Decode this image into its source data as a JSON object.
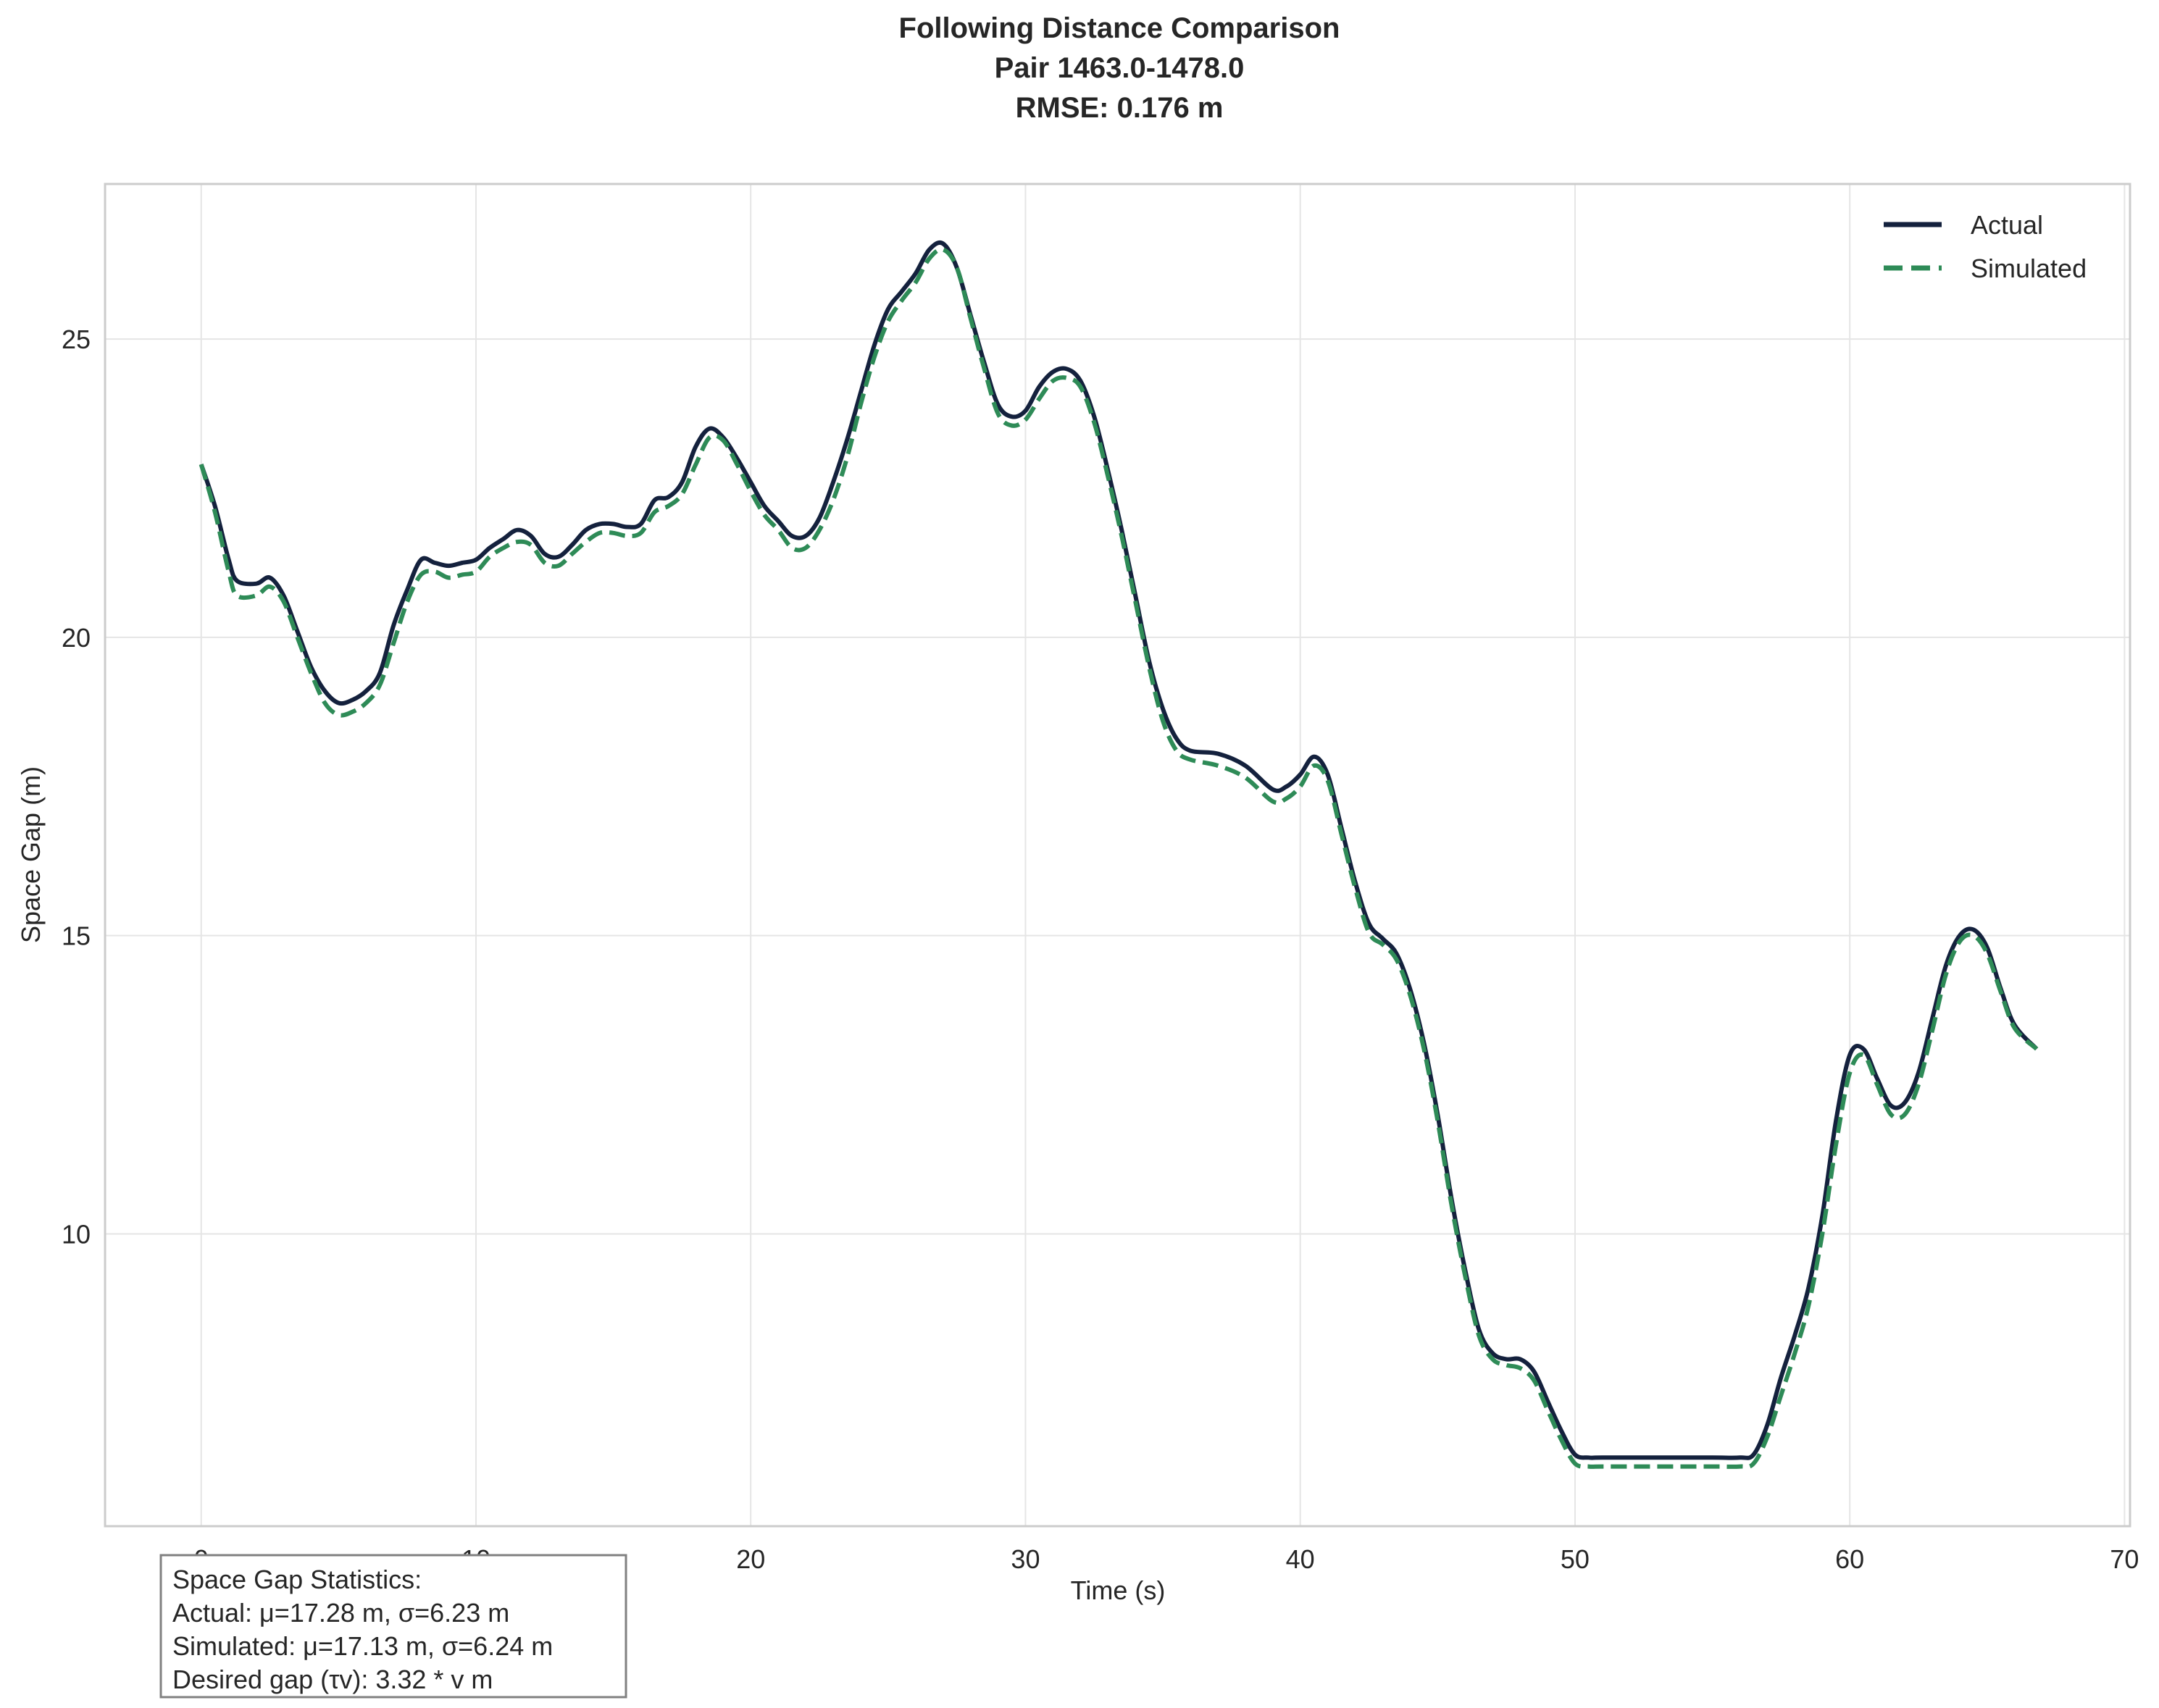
{
  "chart_data": {
    "type": "line",
    "title_lines": [
      "Following Distance Comparison",
      "Pair 1463.0-1478.0",
      "RMSE: 0.176 m"
    ],
    "xlabel": "Time (s)",
    "ylabel": "Space Gap (m)",
    "xlim": [
      -3.5,
      70.2
    ],
    "ylim": [
      5.1,
      27.6
    ],
    "xticks": [
      0,
      10,
      20,
      30,
      40,
      50,
      60,
      70
    ],
    "yticks": [
      10,
      15,
      20,
      25
    ],
    "grid": true,
    "legend_position": "top-right",
    "series": [
      {
        "name": "Actual",
        "color": "#14213d",
        "style": "solid",
        "points": [
          [
            0,
            22.9
          ],
          [
            0.5,
            22.2
          ],
          [
            1,
            21.3
          ],
          [
            1.3,
            20.95
          ],
          [
            2,
            20.9
          ],
          [
            2.5,
            21.0
          ],
          [
            3,
            20.7
          ],
          [
            3.5,
            20.1
          ],
          [
            4,
            19.5
          ],
          [
            4.5,
            19.1
          ],
          [
            5,
            18.9
          ],
          [
            5.5,
            18.95
          ],
          [
            6,
            19.1
          ],
          [
            6.5,
            19.4
          ],
          [
            7,
            20.2
          ],
          [
            7.5,
            20.8
          ],
          [
            8,
            21.3
          ],
          [
            8.5,
            21.25
          ],
          [
            9,
            21.2
          ],
          [
            9.5,
            21.25
          ],
          [
            10,
            21.3
          ],
          [
            10.5,
            21.5
          ],
          [
            11,
            21.65
          ],
          [
            11.5,
            21.8
          ],
          [
            12,
            21.7
          ],
          [
            12.5,
            21.4
          ],
          [
            13,
            21.35
          ],
          [
            13.5,
            21.55
          ],
          [
            14,
            21.8
          ],
          [
            14.5,
            21.9
          ],
          [
            15,
            21.9
          ],
          [
            15.5,
            21.85
          ],
          [
            16,
            21.9
          ],
          [
            16.5,
            22.3
          ],
          [
            17,
            22.35
          ],
          [
            17.5,
            22.6
          ],
          [
            18,
            23.2
          ],
          [
            18.5,
            23.5
          ],
          [
            19,
            23.35
          ],
          [
            19.5,
            23.0
          ],
          [
            20,
            22.6
          ],
          [
            20.5,
            22.2
          ],
          [
            21,
            21.95
          ],
          [
            21.5,
            21.7
          ],
          [
            22,
            21.7
          ],
          [
            22.5,
            22.0
          ],
          [
            23,
            22.6
          ],
          [
            23.5,
            23.3
          ],
          [
            24,
            24.1
          ],
          [
            24.5,
            24.9
          ],
          [
            25,
            25.5
          ],
          [
            25.5,
            25.8
          ],
          [
            26,
            26.1
          ],
          [
            26.5,
            26.5
          ],
          [
            27,
            26.6
          ],
          [
            27.5,
            26.2
          ],
          [
            28,
            25.4
          ],
          [
            28.5,
            24.6
          ],
          [
            29,
            23.9
          ],
          [
            29.5,
            23.7
          ],
          [
            30,
            23.8
          ],
          [
            30.5,
            24.2
          ],
          [
            31,
            24.45
          ],
          [
            31.5,
            24.5
          ],
          [
            32,
            24.3
          ],
          [
            32.5,
            23.7
          ],
          [
            33,
            22.8
          ],
          [
            33.5,
            21.8
          ],
          [
            34,
            20.7
          ],
          [
            34.5,
            19.6
          ],
          [
            35,
            18.8
          ],
          [
            35.5,
            18.3
          ],
          [
            36,
            18.1
          ],
          [
            37,
            18.05
          ],
          [
            38,
            17.85
          ],
          [
            39,
            17.45
          ],
          [
            39.5,
            17.5
          ],
          [
            40,
            17.7
          ],
          [
            40.5,
            18.0
          ],
          [
            41,
            17.7
          ],
          [
            41.5,
            16.8
          ],
          [
            42,
            15.9
          ],
          [
            42.5,
            15.2
          ],
          [
            43,
            14.95
          ],
          [
            43.5,
            14.7
          ],
          [
            44,
            14.1
          ],
          [
            44.5,
            13.2
          ],
          [
            45,
            12.0
          ],
          [
            45.5,
            10.6
          ],
          [
            46,
            9.4
          ],
          [
            46.5,
            8.4
          ],
          [
            47,
            8.0
          ],
          [
            47.5,
            7.9
          ],
          [
            48,
            7.9
          ],
          [
            48.5,
            7.7
          ],
          [
            49,
            7.2
          ],
          [
            49.5,
            6.7
          ],
          [
            50,
            6.3
          ],
          [
            50.5,
            6.25
          ],
          [
            51,
            6.25
          ],
          [
            53,
            6.25
          ],
          [
            55,
            6.25
          ],
          [
            56,
            6.25
          ],
          [
            56.5,
            6.3
          ],
          [
            57,
            6.8
          ],
          [
            57.5,
            7.6
          ],
          [
            58,
            8.3
          ],
          [
            58.5,
            9.1
          ],
          [
            59,
            10.3
          ],
          [
            59.5,
            11.9
          ],
          [
            60,
            13.0
          ],
          [
            60.5,
            13.1
          ],
          [
            61,
            12.6
          ],
          [
            61.5,
            12.15
          ],
          [
            62,
            12.2
          ],
          [
            62.5,
            12.7
          ],
          [
            63,
            13.6
          ],
          [
            63.5,
            14.5
          ],
          [
            64,
            15.0
          ],
          [
            64.5,
            15.1
          ],
          [
            65,
            14.8
          ],
          [
            65.5,
            14.1
          ],
          [
            66,
            13.5
          ],
          [
            66.8,
            13.1
          ]
        ]
      },
      {
        "name": "Simulated",
        "color": "#2e8b57",
        "style": "dashed",
        "points": [
          [
            0,
            22.9
          ],
          [
            0.5,
            22.1
          ],
          [
            1,
            21.1
          ],
          [
            1.3,
            20.7
          ],
          [
            2,
            20.7
          ],
          [
            2.5,
            20.85
          ],
          [
            3,
            20.6
          ],
          [
            3.5,
            20.0
          ],
          [
            4,
            19.4
          ],
          [
            4.5,
            18.9
          ],
          [
            5,
            18.7
          ],
          [
            5.5,
            18.75
          ],
          [
            6,
            18.9
          ],
          [
            6.5,
            19.2
          ],
          [
            7,
            19.9
          ],
          [
            7.5,
            20.6
          ],
          [
            8,
            21.05
          ],
          [
            8.5,
            21.1
          ],
          [
            9,
            21.0
          ],
          [
            9.5,
            21.05
          ],
          [
            10,
            21.1
          ],
          [
            10.5,
            21.35
          ],
          [
            11,
            21.5
          ],
          [
            11.5,
            21.6
          ],
          [
            12,
            21.55
          ],
          [
            12.5,
            21.25
          ],
          [
            13,
            21.2
          ],
          [
            13.5,
            21.4
          ],
          [
            14,
            21.6
          ],
          [
            14.5,
            21.75
          ],
          [
            15,
            21.75
          ],
          [
            15.5,
            21.7
          ],
          [
            16,
            21.75
          ],
          [
            16.5,
            22.1
          ],
          [
            17,
            22.2
          ],
          [
            17.5,
            22.4
          ],
          [
            18,
            22.9
          ],
          [
            18.5,
            23.35
          ],
          [
            19,
            23.3
          ],
          [
            19.5,
            22.9
          ],
          [
            20,
            22.45
          ],
          [
            20.5,
            22.05
          ],
          [
            21,
            21.8
          ],
          [
            21.5,
            21.5
          ],
          [
            22,
            21.5
          ],
          [
            22.5,
            21.8
          ],
          [
            23,
            22.3
          ],
          [
            23.5,
            23.0
          ],
          [
            24,
            23.9
          ],
          [
            24.5,
            24.7
          ],
          [
            25,
            25.3
          ],
          [
            25.5,
            25.65
          ],
          [
            26,
            25.95
          ],
          [
            26.5,
            26.35
          ],
          [
            27,
            26.5
          ],
          [
            27.5,
            26.2
          ],
          [
            28,
            25.35
          ],
          [
            28.5,
            24.5
          ],
          [
            29,
            23.75
          ],
          [
            29.5,
            23.55
          ],
          [
            30,
            23.65
          ],
          [
            30.5,
            24.0
          ],
          [
            31,
            24.3
          ],
          [
            31.5,
            24.35
          ],
          [
            32,
            24.2
          ],
          [
            32.5,
            23.6
          ],
          [
            33,
            22.7
          ],
          [
            33.5,
            21.7
          ],
          [
            34,
            20.6
          ],
          [
            34.5,
            19.5
          ],
          [
            35,
            18.6
          ],
          [
            35.5,
            18.1
          ],
          [
            36,
            17.95
          ],
          [
            37,
            17.85
          ],
          [
            38,
            17.65
          ],
          [
            39,
            17.25
          ],
          [
            39.5,
            17.3
          ],
          [
            40,
            17.5
          ],
          [
            40.5,
            17.85
          ],
          [
            41,
            17.6
          ],
          [
            41.5,
            16.7
          ],
          [
            42,
            15.8
          ],
          [
            42.5,
            15.05
          ],
          [
            43,
            14.85
          ],
          [
            43.5,
            14.6
          ],
          [
            44,
            14.0
          ],
          [
            44.5,
            13.1
          ],
          [
            45,
            11.9
          ],
          [
            45.5,
            10.5
          ],
          [
            46,
            9.3
          ],
          [
            46.5,
            8.3
          ],
          [
            47,
            7.9
          ],
          [
            47.5,
            7.8
          ],
          [
            48,
            7.75
          ],
          [
            48.5,
            7.55
          ],
          [
            49,
            7.05
          ],
          [
            49.5,
            6.55
          ],
          [
            50,
            6.15
          ],
          [
            50.5,
            6.1
          ],
          [
            51,
            6.1
          ],
          [
            53,
            6.1
          ],
          [
            55,
            6.1
          ],
          [
            56,
            6.1
          ],
          [
            56.5,
            6.15
          ],
          [
            57,
            6.6
          ],
          [
            57.5,
            7.3
          ],
          [
            58,
            8.0
          ],
          [
            58.5,
            8.8
          ],
          [
            59,
            10.0
          ],
          [
            59.5,
            11.5
          ],
          [
            60,
            12.7
          ],
          [
            60.5,
            13.0
          ],
          [
            61,
            12.5
          ],
          [
            61.5,
            12.0
          ],
          [
            62,
            12.0
          ],
          [
            62.5,
            12.5
          ],
          [
            63,
            13.4
          ],
          [
            63.5,
            14.35
          ],
          [
            64,
            14.9
          ],
          [
            64.5,
            15.0
          ],
          [
            65,
            14.7
          ],
          [
            65.5,
            14.05
          ],
          [
            66,
            13.45
          ],
          [
            66.8,
            13.1
          ]
        ]
      }
    ],
    "stats_box": {
      "lines": [
        "Space Gap Statistics:",
        "Actual: μ=17.28 m, σ=6.23 m",
        "Simulated: μ=17.13 m, σ=6.24 m",
        "Desired gap (τv): 3.32 * v m"
      ]
    }
  }
}
